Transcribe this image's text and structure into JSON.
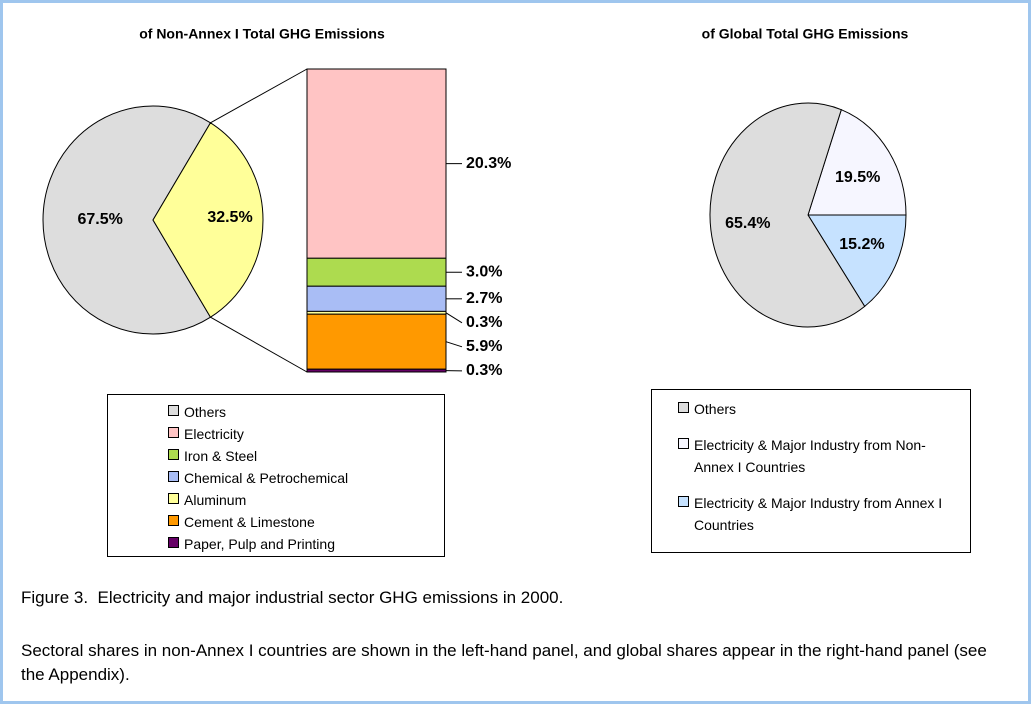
{
  "chart_data": [
    {
      "type": "pie-of-bar",
      "title": "of Non-Annex I Total GHG Emissions",
      "series": [
        {
          "name": "Others",
          "color": "#dddddd",
          "values": [
            67.5
          ],
          "value_labels": [
            "67.5%"
          ]
        },
        {
          "name": "Electricity",
          "color": "#ffc4c4",
          "values": [
            20.3
          ],
          "value_labels": [
            "20.3%"
          ]
        },
        {
          "name": "Iron & Steel",
          "color": "#addb4f",
          "values": [
            3.0
          ],
          "value_labels": [
            "3.0%"
          ]
        },
        {
          "name": "Chemical & Petrochemical",
          "color": "#a9bdf5",
          "values": [
            2.7
          ],
          "value_labels": [
            "2.7%"
          ]
        },
        {
          "name": "Aluminum",
          "color": "#ffff99",
          "values": [
            0.3
          ],
          "value_labels": [
            "0.3%"
          ]
        },
        {
          "name": "Cement & Limestone",
          "color": "#ff9900",
          "values": [
            5.9
          ],
          "value_labels": [
            "5.9%"
          ]
        },
        {
          "name": "Paper, Pulp and Printing",
          "color": "#660066",
          "values": [
            0.3
          ],
          "value_labels": [
            "0.3%"
          ]
        }
      ],
      "split_slice": {
        "color": "#ffff99",
        "values": [
          32.5
        ],
        "value_labels": [
          "32.5%"
        ]
      }
    },
    {
      "type": "pie",
      "title": "of Global Total GHG Emissions",
      "series": [
        {
          "name": "Others",
          "color": "#dddddd",
          "values": [
            65.4
          ],
          "value_labels": [
            "65.4%"
          ]
        },
        {
          "name": "Electricity & Major Industry from Non-Annex I Countries",
          "color": "#f6f6ff",
          "values": [
            19.5
          ],
          "value_labels": [
            "19.5%"
          ]
        },
        {
          "name": "Electricity & Major Industry from Annex I Countries",
          "color": "#c6e2ff",
          "values": [
            15.2
          ],
          "value_labels": [
            "15.2%"
          ]
        }
      ]
    }
  ],
  "caption": [
    "Figure 3.  Electricity and major industrial sector GHG emissions in 2000.",
    "Sectoral shares in non-Annex I countries are shown in the left-hand panel, and global shares appear in the right-hand panel (see the Appendix)."
  ]
}
